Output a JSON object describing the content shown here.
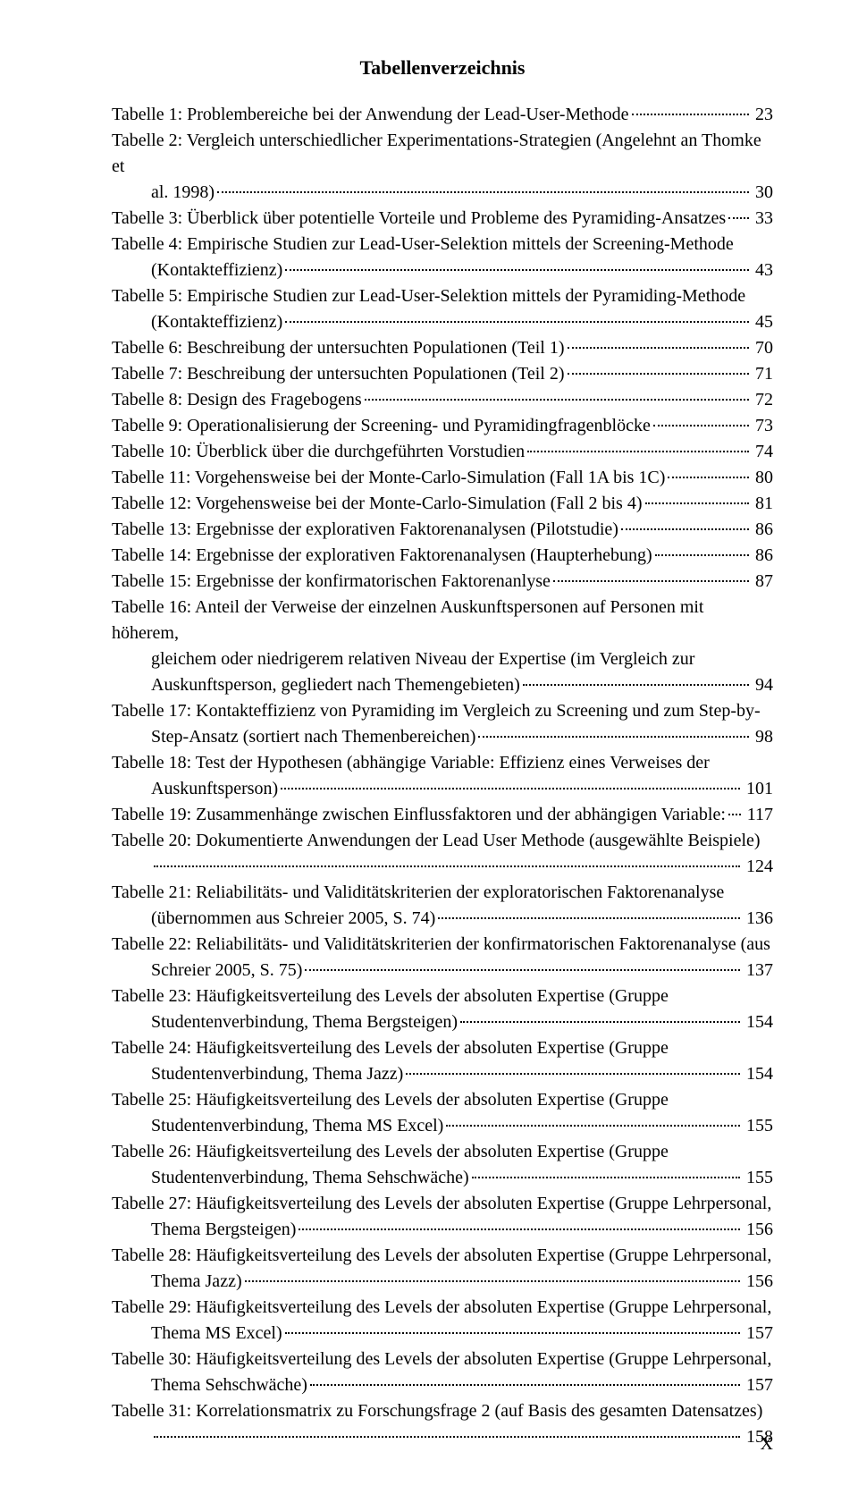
{
  "title": "Tabellenverzeichnis",
  "footer_page": "X",
  "font": {
    "family": "Times New Roman",
    "body_size_pt": 12,
    "title_size_pt": 12,
    "color": "#000000",
    "background": "#ffffff"
  },
  "entries": [
    {
      "lines": [
        "Tabelle 1: Problembereiche bei der Anwendung der Lead-User-Methode"
      ],
      "page": "23"
    },
    {
      "lines": [
        "Tabelle 2: Vergleich unterschiedlicher Experimentations-Strategien  (Angelehnt an Thomke et",
        "al. 1998)"
      ],
      "page": "30"
    },
    {
      "lines": [
        "Tabelle 3: Überblick über potentielle Vorteile und Probleme des Pyramiding-Ansatzes"
      ],
      "page": "33"
    },
    {
      "lines": [
        "Tabelle 4: Empirische Studien zur Lead-User-Selektion mittels der Screening-Methode",
        "(Kontakteffizienz)"
      ],
      "page": "43"
    },
    {
      "lines": [
        "Tabelle 5: Empirische Studien zur Lead-User-Selektion mittels der Pyramiding-Methode",
        "(Kontakteffizienz)"
      ],
      "page": "45"
    },
    {
      "lines": [
        "Tabelle 6: Beschreibung der untersuchten Populationen (Teil 1)"
      ],
      "page": "70"
    },
    {
      "lines": [
        "Tabelle 7: Beschreibung der untersuchten Populationen (Teil 2)"
      ],
      "page": "71"
    },
    {
      "lines": [
        "Tabelle 8: Design des Fragebogens"
      ],
      "page": "72"
    },
    {
      "lines": [
        "Tabelle 9: Operationalisierung der Screening- und Pyramidingfragenblöcke"
      ],
      "page": "73"
    },
    {
      "lines": [
        "Tabelle 10: Überblick über die durchgeführten Vorstudien"
      ],
      "page": "74"
    },
    {
      "lines": [
        "Tabelle 11: Vorgehensweise bei der Monte-Carlo-Simulation (Fall 1A bis 1C)"
      ],
      "page": "80"
    },
    {
      "lines": [
        "Tabelle 12: Vorgehensweise bei der Monte-Carlo-Simulation (Fall 2 bis 4)"
      ],
      "page": "81"
    },
    {
      "lines": [
        "Tabelle 13: Ergebnisse der explorativen Faktorenanalysen (Pilotstudie)"
      ],
      "page": "86"
    },
    {
      "lines": [
        "Tabelle 14: Ergebnisse der explorativen Faktorenanalysen (Haupterhebung)"
      ],
      "page": "86"
    },
    {
      "lines": [
        "Tabelle 15: Ergebnisse der konfirmatorischen Faktorenanlyse"
      ],
      "page": "87"
    },
    {
      "lines": [
        "Tabelle 16: Anteil der Verweise der einzelnen Auskunftspersonen auf Personen mit  höherem,",
        "gleichem oder niedrigerem relativen Niveau der Expertise  (im Vergleich zur",
        "Auskunftsperson, gegliedert nach Themengebieten)"
      ],
      "page": "94"
    },
    {
      "lines": [
        "Tabelle 17: Kontakteffizienz von Pyramiding im Vergleich zu Screening und zum Step-by-",
        "Step-Ansatz (sortiert nach Themenbereichen)"
      ],
      "page": "98"
    },
    {
      "lines": [
        "Tabelle 18: Test der Hypothesen (abhängige Variable: Effizienz eines Verweises der",
        "Auskunftsperson)"
      ],
      "page": "101"
    },
    {
      "lines": [
        "Tabelle 19: Zusammenhänge zwischen Einflussfaktoren und der abhängigen Variable:"
      ],
      "page": "117"
    },
    {
      "lines": [
        "Tabelle 20: Dokumentierte Anwendungen der Lead User Methode (ausgewählte Beispiele)",
        ""
      ],
      "page": "124"
    },
    {
      "lines": [
        "Tabelle 21: Reliabilitäts- und Validitätskriterien der exploratorischen Faktorenanalyse",
        "(übernommen aus Schreier 2005, S. 74)"
      ],
      "page": "136"
    },
    {
      "lines": [
        "Tabelle 22: Reliabilitäts- und Validitätskriterien der konfirmatorischen Faktorenanalyse (aus",
        "Schreier 2005, S. 75)"
      ],
      "page": "137"
    },
    {
      "lines": [
        "Tabelle 23: Häufigkeitsverteilung des Levels der absoluten Expertise  (Gruppe",
        "Studentenverbindung, Thema Bergsteigen)"
      ],
      "page": "154"
    },
    {
      "lines": [
        "Tabelle 24: Häufigkeitsverteilung des Levels der absoluten Expertise  (Gruppe",
        "Studentenverbindung, Thema Jazz)"
      ],
      "page": "154"
    },
    {
      "lines": [
        "Tabelle 25: Häufigkeitsverteilung des Levels der absoluten Expertise  (Gruppe",
        "Studentenverbindung, Thema MS Excel)"
      ],
      "page": "155"
    },
    {
      "lines": [
        "Tabelle 26: Häufigkeitsverteilung des Levels der absoluten Expertise  (Gruppe",
        "Studentenverbindung, Thema Sehschwäche)"
      ],
      "page": "155"
    },
    {
      "lines": [
        "Tabelle 27: Häufigkeitsverteilung des Levels der absoluten Expertise  (Gruppe Lehrpersonal,",
        "Thema Bergsteigen)"
      ],
      "page": "156"
    },
    {
      "lines": [
        "Tabelle 28: Häufigkeitsverteilung des Levels der absoluten Expertise  (Gruppe Lehrpersonal,",
        "Thema Jazz)"
      ],
      "page": "156"
    },
    {
      "lines": [
        "Tabelle 29: Häufigkeitsverteilung des Levels der absoluten Expertise  (Gruppe Lehrpersonal,",
        "Thema MS Excel)"
      ],
      "page": "157"
    },
    {
      "lines": [
        "Tabelle 30: Häufigkeitsverteilung des Levels der absoluten Expertise  (Gruppe Lehrpersonal,",
        "Thema Sehschwäche)"
      ],
      "page": "157"
    },
    {
      "lines": [
        "Tabelle 31: Korrelationsmatrix zu Forschungsfrage 2 (auf Basis des gesamten Datensatzes)",
        ""
      ],
      "page": "158"
    }
  ]
}
